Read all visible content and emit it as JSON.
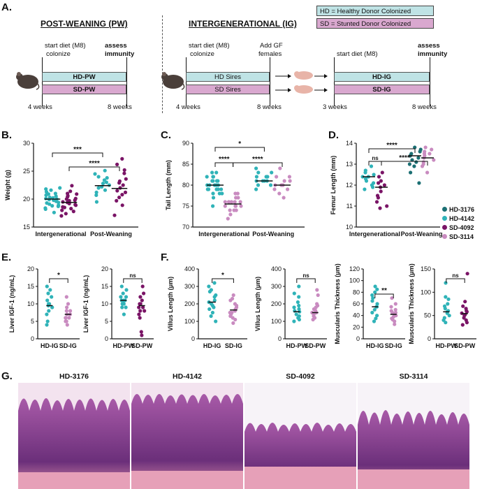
{
  "panel_labels": {
    "a": "A.",
    "b": "B.",
    "c": "C.",
    "d": "D.",
    "e": "E.",
    "f": "F.",
    "g": "G."
  },
  "panel_a": {
    "pw_header": "POST-WEANING (PW)",
    "ig_header": "INTERGENERATIONAL (IG)",
    "legend": [
      "HD = Healthy Donor Colonized",
      "SD = Stunted Donor Colonized"
    ],
    "legend_colors": [
      "#bfe3e5",
      "#d9a8cf"
    ],
    "start_diet": "start diet (M8)",
    "colonize": "colonize",
    "assess": "assess",
    "immunity": "immunity",
    "add_gf": "Add GF",
    "females": "females",
    "bars": {
      "hd_pw": "HD-PW",
      "sd_pw": "SD-PW",
      "hd_sires": "HD Sires",
      "sd_sires": "SD Sires",
      "hd_ig": "HD-IG",
      "sd_ig": "SD-IG"
    },
    "times": {
      "w4": "4 weeks",
      "w8": "8 weeks",
      "w3": "3 weeks"
    }
  },
  "legend_donors": {
    "items": [
      "HD-3176",
      "HD-4142",
      "SD-4092",
      "SD-3114"
    ],
    "colors": [
      "#1b6f73",
      "#2fb3b8",
      "#7a1466",
      "#c98bc0"
    ]
  },
  "chart_data": [
    {
      "id": "B",
      "type": "scatter",
      "ylabel": "Weight (g)",
      "ylim": [
        15,
        30
      ],
      "yticks": [
        "15",
        "20",
        "25",
        "30"
      ],
      "categories": [
        "Intergenerational",
        "Post-Weaning"
      ],
      "groups": [
        {
          "values": [
            20.5,
            19.8,
            18.9,
            20.2,
            21.3,
            19.4,
            20.9,
            18.4,
            21.6,
            19.1,
            20.0,
            18.7,
            20.7,
            19.6,
            21.0,
            18.2,
            20.3,
            19.9,
            17.6,
            22.0,
            20.1,
            19.3,
            21.8,
            18.8
          ],
          "color": "#2fb3b8",
          "mean": 20.0
        },
        {
          "values": [
            19.5,
            18.6,
            20.1,
            19.0,
            21.0,
            17.8,
            18.9,
            20.6,
            19.7,
            18.3,
            21.4,
            19.2,
            20.4,
            17.4,
            18.5,
            22.4,
            20.9,
            17.0,
            19.8,
            18.0,
            20.0,
            19.4
          ],
          "color": "#7a1466",
          "mean": 19.4
        },
        {
          "values": [
            22.5,
            23.4,
            21.6,
            24.5,
            22.0,
            20.7,
            23.0,
            25.1,
            21.2,
            22.8,
            24.0,
            19.5,
            23.8,
            22.2
          ],
          "color": "#2fb3b8",
          "mean": 22.4
        },
        {
          "values": [
            22.0,
            23.6,
            20.8,
            24.6,
            21.5,
            26.2,
            19.7,
            23.2,
            21.2,
            22.9,
            25.2,
            18.9,
            22.5,
            27.2,
            17.1,
            20.3
          ],
          "color": "#7a1466",
          "mean": 21.9
        }
      ],
      "sig": [
        {
          "label": "***"
        },
        {
          "label": "****"
        }
      ]
    },
    {
      "id": "C",
      "type": "scatter",
      "ylabel": "Tail Length (mm)",
      "ylim": [
        70,
        90
      ],
      "yticks": [
        "70",
        "75",
        "80",
        "85",
        "90"
      ],
      "categories": [
        "Intergenerational",
        "Post-Weaning"
      ],
      "groups": [
        {
          "values": [
            80,
            81,
            79,
            82,
            78,
            80,
            83,
            79,
            81,
            80,
            77,
            82,
            78,
            80,
            79,
            81,
            83,
            78,
            80,
            75,
            80,
            79,
            82,
            81,
            79,
            80
          ],
          "color": "#2fb3b8",
          "mean": 80
        },
        {
          "values": [
            76,
            75,
            77,
            74,
            76,
            78,
            75,
            73,
            76,
            77,
            74,
            75,
            72,
            76,
            75,
            78,
            74,
            76
          ],
          "color": "#c98bc0",
          "mean": 75.5
        },
        {
          "values": [
            81,
            82,
            80,
            83,
            81,
            79,
            82,
            84,
            81,
            80,
            82,
            81,
            83
          ],
          "color": "#2fb3b8",
          "mean": 81
        },
        {
          "values": [
            80,
            81,
            79,
            82,
            80,
            78,
            81,
            84,
            80,
            79,
            82,
            80,
            77
          ],
          "color": "#c98bc0",
          "mean": 80
        }
      ],
      "sig": [
        {
          "label": "*"
        },
        {
          "label": "****"
        },
        {
          "label": "****"
        }
      ]
    },
    {
      "id": "D",
      "type": "scatter",
      "ylabel": "Femur Length (mm)",
      "ylim": [
        10,
        14
      ],
      "yticks": [
        "10",
        "11",
        "12",
        "13",
        "14"
      ],
      "categories": [
        "Intergenerational",
        "Post-Weaning"
      ],
      "groups": [
        {
          "values": [
            12.4,
            12.0,
            12.6,
            12.3,
            12.9,
            11.8,
            12.5,
            12.2,
            12.7,
            11.9,
            12.4,
            12.1
          ],
          "color": "#2fb3b8",
          "mean": 12.4
        },
        {
          "values": [
            11.9,
            11.5,
            12.2,
            11.2,
            12.4,
            11.7,
            10.9,
            12.0,
            11.4,
            12.6,
            11.0,
            12.1
          ],
          "color": "#7a1466",
          "mean": 11.9
        },
        {
          "values": [
            13.4,
            13.2,
            13.6,
            12.9,
            13.5,
            13.1,
            13.7,
            12.6,
            13.3,
            13.0,
            13.8,
            12.1
          ],
          "color": "#1b6f73",
          "mean": 13.4
        },
        {
          "values": [
            13.3,
            13.5,
            13.1,
            13.7,
            12.9,
            13.4,
            13.6,
            13.0,
            12.6,
            13.2,
            13.8,
            13.5
          ],
          "color": "#c98bc0",
          "mean": 13.3
        }
      ],
      "sig": [
        {
          "label": "****"
        },
        {
          "label": "ns"
        },
        {
          "label": "****"
        }
      ]
    },
    {
      "id": "E1",
      "type": "scatter",
      "ylabel": "Liver IGF-1 (ng/mL)",
      "ylim": [
        0,
        20
      ],
      "yticks": [
        "0",
        "5",
        "10",
        "15",
        "20"
      ],
      "categories": [
        "HD-IG",
        "SD-IG"
      ],
      "groups": [
        {
          "values": [
            9.5,
            12,
            8,
            15,
            10,
            13,
            5,
            9,
            11,
            7,
            14,
            10,
            4,
            9
          ],
          "color": "#2fb3b8",
          "mean": 9.5
        },
        {
          "values": [
            7,
            6,
            8,
            10,
            5,
            6,
            9,
            12,
            7,
            6,
            5,
            8,
            4
          ],
          "color": "#c98bc0",
          "mean": 7
        }
      ],
      "sig": [
        {
          "label": "*"
        }
      ]
    },
    {
      "id": "E2",
      "type": "scatter",
      "ylabel": "Liver IGF-1 (ng/mL)",
      "ylim": [
        0,
        20
      ],
      "yticks": [
        "0",
        "5",
        "10",
        "15",
        "20"
      ],
      "categories": [
        "HD-PW",
        "SD-PW"
      ],
      "groups": [
        {
          "values": [
            11,
            12,
            10,
            14,
            9,
            13,
            11,
            7,
            12,
            10,
            15,
            9,
            11
          ],
          "color": "#2fb3b8",
          "mean": 11
        },
        {
          "values": [
            9,
            12,
            8,
            10,
            15,
            6,
            11,
            2,
            9,
            13,
            7,
            10,
            1,
            8
          ],
          "color": "#7a1466",
          "mean": 9.5
        }
      ],
      "sig": [
        {
          "label": "ns"
        }
      ]
    },
    {
      "id": "F1",
      "type": "scatter",
      "ylabel": "Villus Length (μm)",
      "ylim": [
        0,
        400
      ],
      "yticks": [
        "0",
        "100",
        "200",
        "300",
        "400"
      ],
      "categories": [
        "HD-IG",
        "SD-IG"
      ],
      "groups": [
        {
          "values": [
            210,
            250,
            180,
            320,
            300,
            150,
            220,
            270,
            100,
            190,
            240,
            130,
            200,
            280,
            170
          ],
          "color": "#2fb3b8",
          "mean": 210
        },
        {
          "values": [
            170,
            150,
            200,
            130,
            180,
            250,
            110,
            160,
            190,
            140,
            220,
            120,
            170,
            90,
            230,
            150
          ],
          "color": "#c98bc0",
          "mean": 165
        }
      ],
      "sig": [
        {
          "label": "*"
        }
      ]
    },
    {
      "id": "F2",
      "type": "scatter",
      "ylabel": "Villus Length (μm)",
      "ylim": [
        0,
        400
      ],
      "yticks": [
        "0",
        "100",
        "200",
        "300",
        "400"
      ],
      "categories": [
        "HD-PW",
        "SD-PW"
      ],
      "groups": [
        {
          "values": [
            155,
            180,
            130,
            210,
            300,
            120,
            160,
            240,
            110,
            190,
            140,
            170,
            100,
            260
          ],
          "color": "#2fb3b8",
          "mean": 155
        },
        {
          "values": [
            150,
            170,
            130,
            200,
            250,
            140,
            160,
            120,
            180,
            280,
            110,
            150,
            190
          ],
          "color": "#c98bc0",
          "mean": 150
        }
      ],
      "sig": [
        {
          "label": "ns"
        }
      ]
    },
    {
      "id": "F3",
      "type": "scatter",
      "ylabel": "Muscularis Thickness (μm)",
      "ylim": [
        0,
        120
      ],
      "yticks": [
        "0",
        "20",
        "40",
        "60",
        "80",
        "100",
        "120"
      ],
      "categories": [
        "HD-IG",
        "SD-IG"
      ],
      "groups": [
        {
          "values": [
            55,
            70,
            45,
            90,
            35,
            60,
            80,
            50,
            40,
            65,
            75,
            30,
            55,
            85
          ],
          "color": "#2fb3b8",
          "mean": 55
        },
        {
          "values": [
            40,
            50,
            35,
            45,
            60,
            30,
            42,
            55,
            38,
            25,
            48,
            70,
            33,
            45
          ],
          "color": "#c98bc0",
          "mean": 42
        }
      ],
      "sig": [
        {
          "label": "**"
        }
      ]
    },
    {
      "id": "F4",
      "type": "scatter",
      "ylabel": "Muscularis Thickness (μm)",
      "ylim": [
        0,
        150
      ],
      "yticks": [
        "0",
        "50",
        "100",
        "150"
      ],
      "categories": [
        "HD-PW",
        "SD-PW"
      ],
      "groups": [
        {
          "values": [
            58,
            70,
            45,
            90,
            120,
            50,
            60,
            40,
            75,
            65,
            55,
            85,
            35
          ],
          "color": "#2fb3b8",
          "mean": 58
        },
        {
          "values": [
            52,
            60,
            45,
            70,
            140,
            40,
            55,
            65,
            35,
            50,
            80,
            30,
            58
          ],
          "color": "#7a1466",
          "mean": 54
        }
      ],
      "sig": [
        {
          "label": "ns"
        }
      ]
    }
  ],
  "panel_g": {
    "titles": [
      "HD-3176",
      "HD-4142",
      "SD-4092",
      "SD-3114"
    ]
  }
}
